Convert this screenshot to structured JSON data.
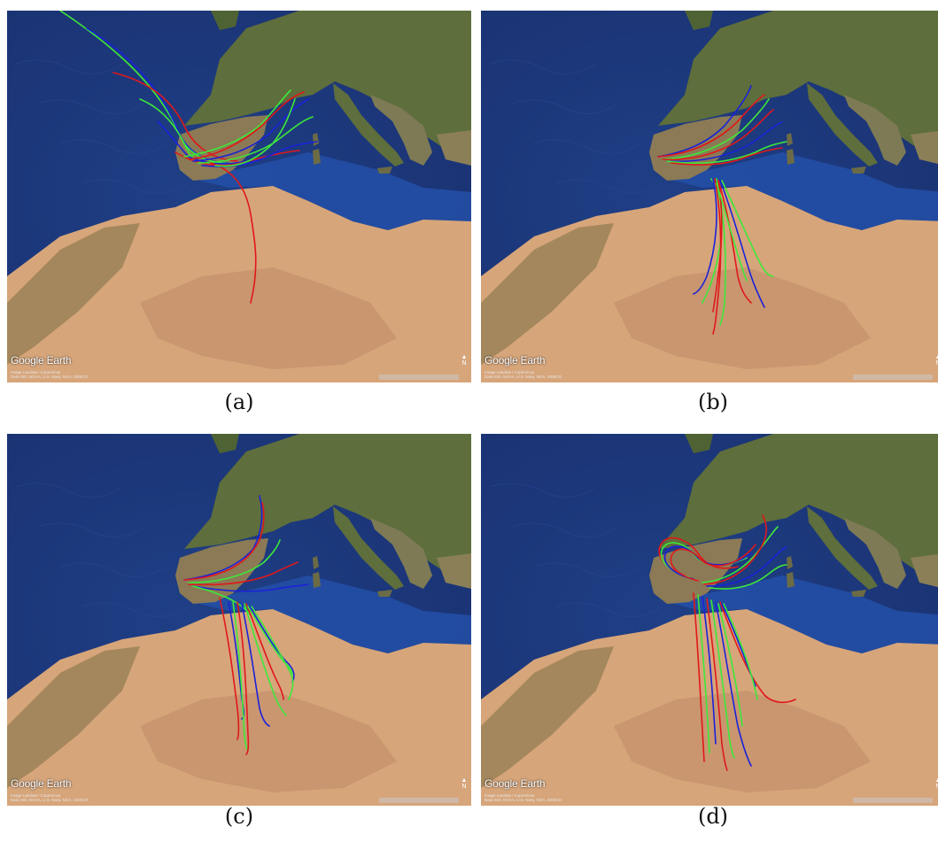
{
  "panels": [
    {
      "id": "a",
      "caption": "(a)",
      "logo": "Google Earth",
      "credits": "Image Landsat / Copernicus\nData SIO, NOAA, U.S. Navy, NGA, GEBCO",
      "north": "N"
    },
    {
      "id": "b",
      "caption": "(b)",
      "logo": "Google Earth",
      "credits": "Image Landsat / Copernicus\nData SIO, NOAA, U.S. Navy, NGA, GEBCO",
      "north": "N"
    },
    {
      "id": "c",
      "caption": "(c)",
      "logo": "Google Earth",
      "credits": "Image Landsat / Copernicus\nData SIO, NOAA, U.S. Navy, NGA, GEBCO",
      "north": "N"
    },
    {
      "id": "d",
      "caption": "(d)",
      "logo": "Google Earth",
      "credits": "Image Landsat / Copernicus\nData SIO, NOAA, U.S. Navy, NGA, GEBCO",
      "north": "N"
    }
  ],
  "colors": {
    "ocean": "#1f3f86",
    "ocean_deep": "#1a3272",
    "land_green": "#5e6e3c",
    "land_brown": "#8b7a55",
    "desert": "#d7a57a",
    "desert_dark": "#b98664",
    "track_red": "#e0181a",
    "track_green": "#3ee83a",
    "track_blue": "#1a22d8"
  },
  "track_colors": [
    "red",
    "green",
    "blue"
  ]
}
